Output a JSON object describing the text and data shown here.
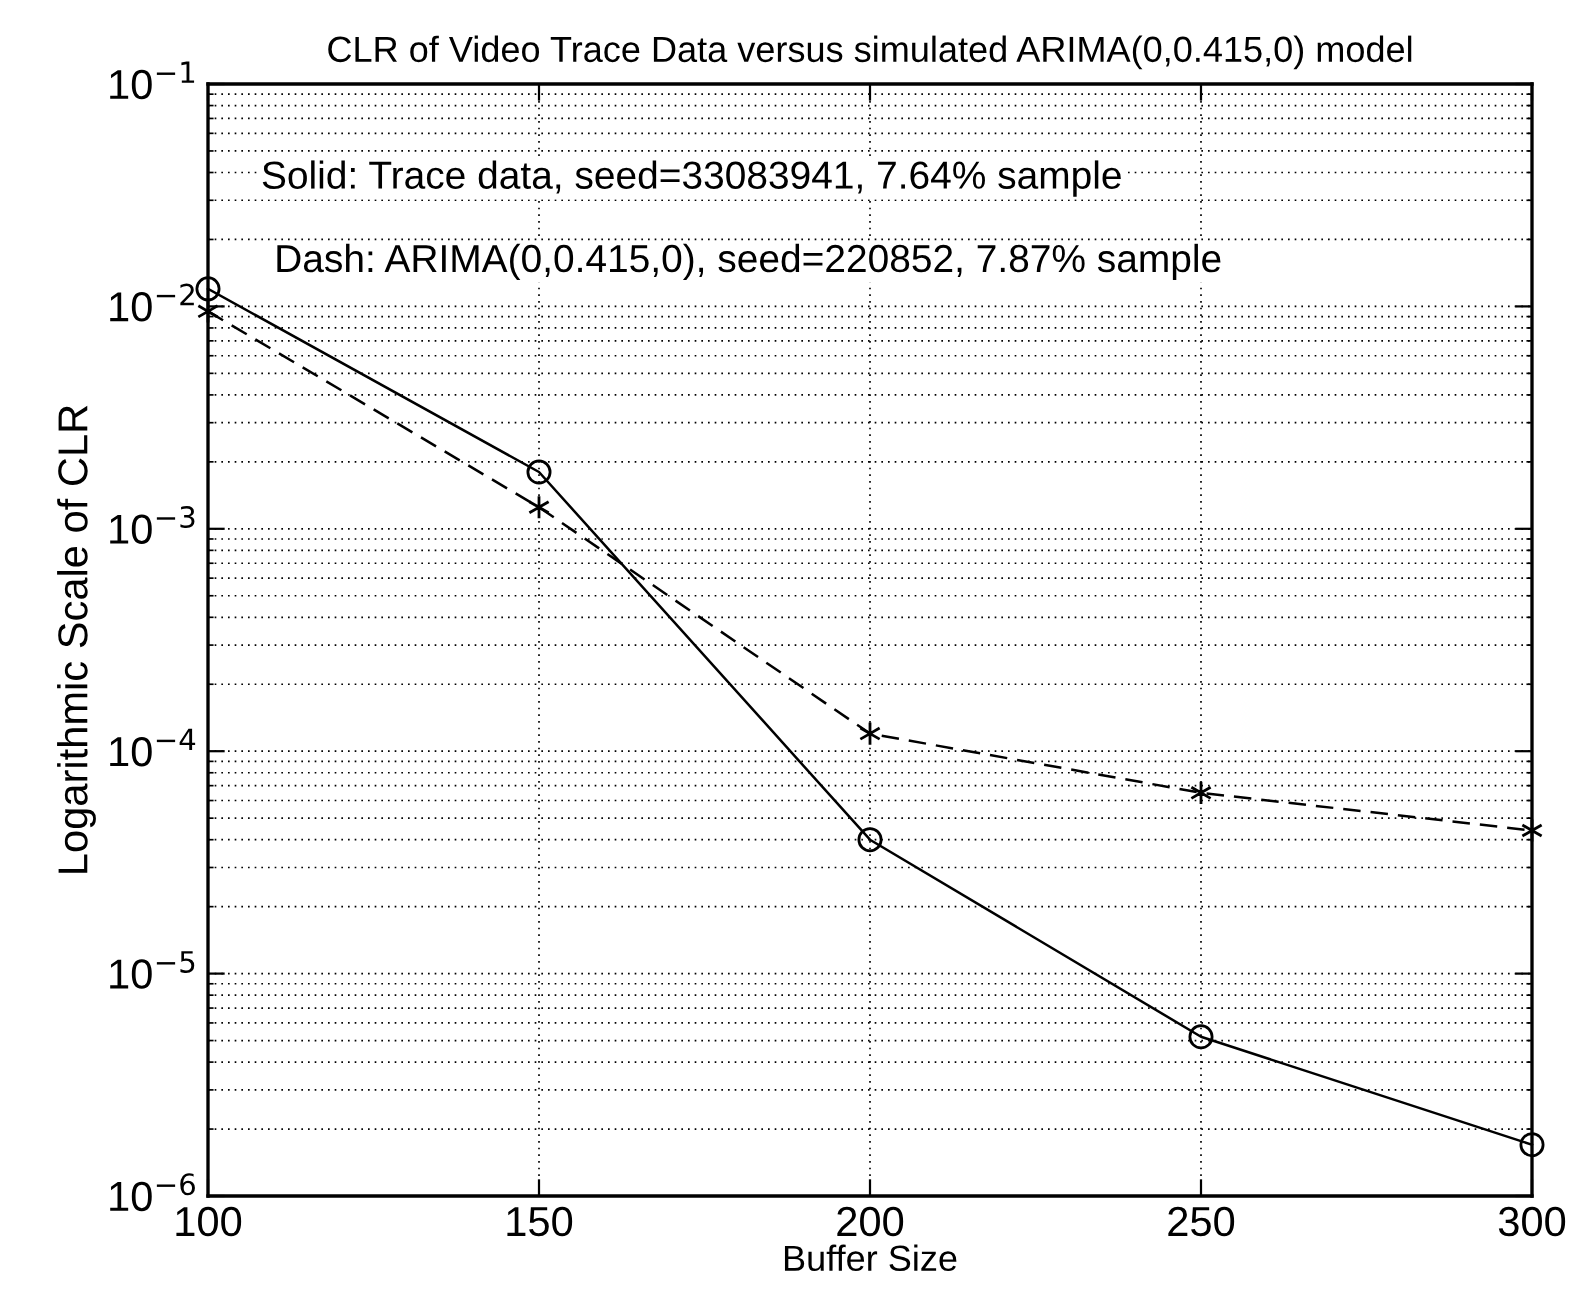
{
  "chart_data": {
    "type": "line",
    "title": "CLR of Video Trace Data versus simulated ARIMA(0,0.415,0) model",
    "xlabel": "Buffer Size",
    "ylabel": "Logarithmic Scale of CLR",
    "x": [
      100,
      150,
      200,
      250,
      300
    ],
    "series": [
      {
        "color": "#000000",
        "marker": "circle",
        "line_style": "solid",
        "values": [
          0.012,
          0.0018,
          4e-05,
          5.2e-06,
          1.7e-06
        ]
      },
      {
        "color": "#000000",
        "marker": "cross",
        "line_style": "dashed",
        "values": [
          0.0095,
          0.00125,
          0.00012,
          6.5e-05,
          4.4e-05
        ]
      }
    ],
    "log": "y",
    "xlim": [
      100,
      300
    ],
    "ylim": [
      1e-06,
      0.1
    ],
    "xticks": [
      100,
      150,
      200,
      250,
      300
    ],
    "yticks": [
      {
        "value": 1e-06,
        "label": "10$^{−6}$"
      },
      {
        "value": 1e-05,
        "label": "10$^{−5}$"
      },
      {
        "value": 0.0001,
        "label": "10$^{−4}$"
      },
      {
        "value": 0.001,
        "label": "10$^{−3}$"
      },
      {
        "value": 0.01,
        "label": "10$^{−2}$"
      },
      {
        "value": 0.1,
        "label": "10$^{−1}$"
      }
    ],
    "grid": true,
    "annotations": [
      "Solid: Trace data, seed=33083941, 7.64% sample",
      "Dash: ARIMA(0,0.415,0), seed=220852, 7.87% sample"
    ]
  }
}
